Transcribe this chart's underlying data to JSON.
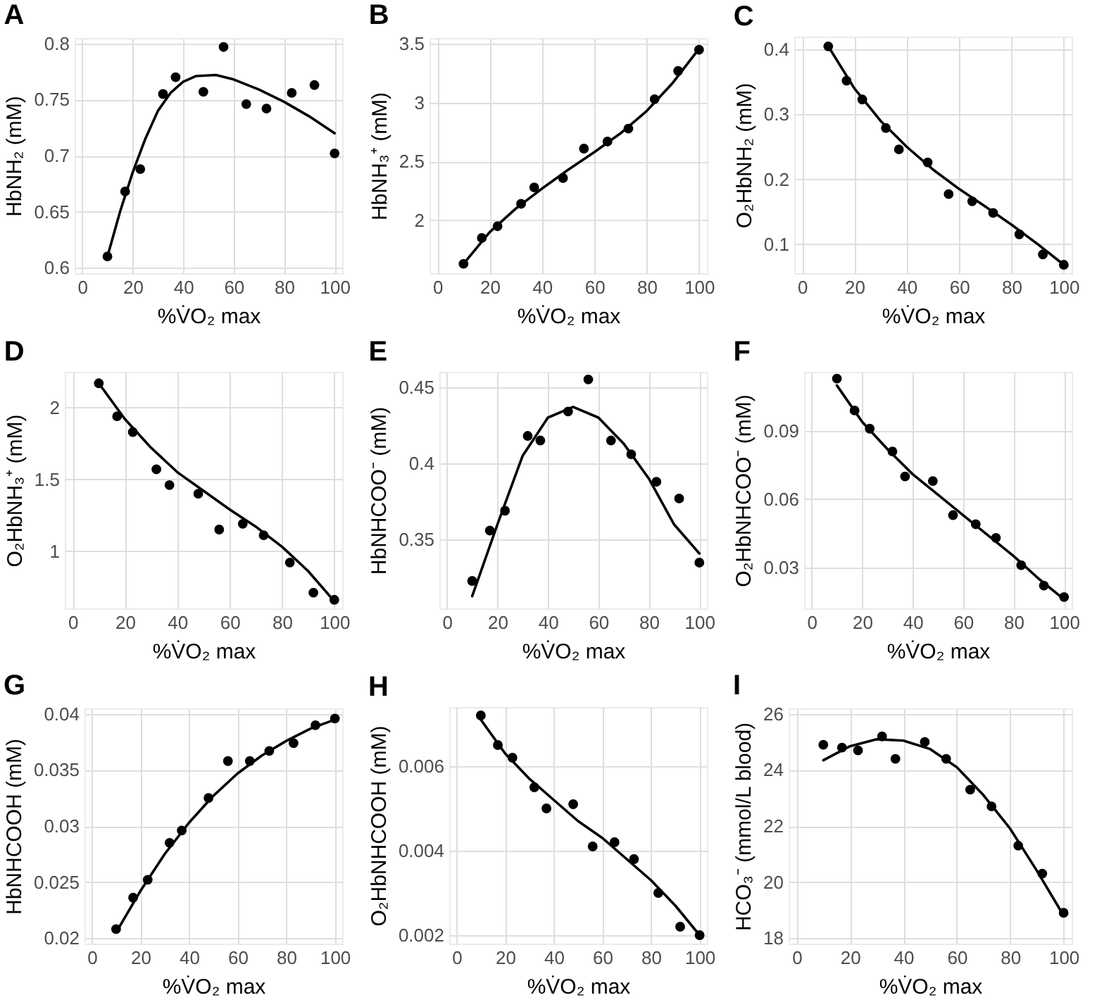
{
  "chart_data": [
    {
      "type": "scatter",
      "title": "A",
      "xlabel": "%V̇O₂ max",
      "ylabel": "HbNH₂ (mM)",
      "x": [
        10,
        17,
        23,
        32,
        37,
        48,
        56,
        65,
        73,
        83,
        92,
        100
      ],
      "xlim": [
        -3,
        103
      ],
      "xticks": [
        0,
        20,
        40,
        60,
        80,
        100
      ],
      "ylim": [
        0.595,
        0.805
      ],
      "yticks": [
        0.6,
        0.65,
        0.7,
        0.75,
        0.8
      ],
      "grid": true,
      "series": [
        {
          "marker": "circle",
          "color": "#000000",
          "values": [
            0.61,
            0.668,
            0.688,
            0.755,
            0.77,
            0.757,
            0.797,
            0.746,
            0.742,
            0.756,
            0.763,
            0.702
          ]
        },
        {
          "type": "line",
          "color": "#000000",
          "x": [
            10,
            15,
            20,
            25,
            30,
            35,
            40,
            45,
            53,
            60,
            70,
            80,
            90,
            100
          ],
          "values": [
            0.61,
            0.65,
            0.685,
            0.715,
            0.74,
            0.756,
            0.766,
            0.771,
            0.772,
            0.768,
            0.759,
            0.748,
            0.735,
            0.72
          ]
        }
      ]
    },
    {
      "type": "scatter",
      "title": "B",
      "xlabel": "%V̇O₂ max",
      "ylabel": "HbNH₃⁺ (mM)",
      "x": [
        10,
        17,
        23,
        32,
        37,
        48,
        56,
        65,
        73,
        83,
        92,
        100
      ],
      "xlim": [
        -3,
        103
      ],
      "xticks": [
        0,
        20,
        40,
        60,
        80,
        100
      ],
      "ylim": [
        1.55,
        3.55
      ],
      "yticks": [
        2,
        2.5,
        3,
        3.5
      ],
      "grid": true,
      "series": [
        {
          "marker": "circle",
          "color": "#000000",
          "values": [
            1.63,
            1.85,
            1.95,
            2.14,
            2.28,
            2.36,
            2.61,
            2.67,
            2.78,
            3.03,
            3.27,
            3.45
          ]
        },
        {
          "type": "line",
          "color": "#000000",
          "x": [
            10,
            20,
            30,
            40,
            50,
            60,
            70,
            80,
            90,
            100
          ],
          "values": [
            1.63,
            1.9,
            2.1,
            2.27,
            2.43,
            2.58,
            2.74,
            2.93,
            3.17,
            3.46
          ]
        }
      ]
    },
    {
      "type": "scatter",
      "title": "C",
      "xlabel": "%V̇O₂ max",
      "ylabel": "O₂HbNH₂ (mM)",
      "x": [
        10,
        17,
        23,
        32,
        37,
        48,
        56,
        65,
        73,
        83,
        92,
        100
      ],
      "xlim": [
        -3,
        103
      ],
      "xticks": [
        0,
        20,
        40,
        60,
        80,
        100
      ],
      "ylim": [
        0.055,
        0.42
      ],
      "yticks": [
        0.1,
        0.2,
        0.3,
        0.4
      ],
      "grid": true,
      "series": [
        {
          "marker": "circle",
          "color": "#000000",
          "values": [
            0.405,
            0.352,
            0.323,
            0.279,
            0.246,
            0.226,
            0.177,
            0.166,
            0.148,
            0.115,
            0.084,
            0.068
          ]
        },
        {
          "type": "line",
          "color": "#000000",
          "x": [
            10,
            20,
            30,
            40,
            50,
            60,
            70,
            80,
            90,
            100
          ],
          "values": [
            0.405,
            0.34,
            0.29,
            0.25,
            0.215,
            0.185,
            0.158,
            0.13,
            0.1,
            0.068
          ]
        }
      ]
    },
    {
      "type": "scatter",
      "title": "D",
      "xlabel": "%V̇O₂ max",
      "ylabel": "O₂HbNH₃⁺ (mM)",
      "x": [
        10,
        17,
        23,
        32,
        37,
        48,
        56,
        65,
        73,
        83,
        92,
        100
      ],
      "xlim": [
        -3,
        103
      ],
      "xticks": [
        0,
        20,
        40,
        60,
        80,
        100
      ],
      "ylim": [
        0.6,
        2.25
      ],
      "yticks": [
        1,
        1.5,
        2
      ],
      "grid": true,
      "series": [
        {
          "marker": "circle",
          "color": "#000000",
          "values": [
            2.17,
            1.94,
            1.83,
            1.57,
            1.46,
            1.4,
            1.15,
            1.19,
            1.11,
            0.92,
            0.71,
            0.66
          ]
        },
        {
          "type": "line",
          "color": "#000000",
          "x": [
            10,
            20,
            30,
            40,
            50,
            60,
            70,
            80,
            90,
            100
          ],
          "values": [
            2.17,
            1.92,
            1.72,
            1.55,
            1.42,
            1.29,
            1.17,
            1.03,
            0.86,
            0.65
          ]
        }
      ]
    },
    {
      "type": "scatter",
      "title": "E",
      "xlabel": "%V̇O₂ max",
      "ylabel": "HbNHCOO⁻ (mM)",
      "x": [
        10,
        17,
        23,
        32,
        37,
        48,
        56,
        65,
        73,
        83,
        92,
        100
      ],
      "xlim": [
        -3,
        103
      ],
      "xticks": [
        0,
        20,
        40,
        60,
        80,
        100
      ],
      "ylim": [
        0.305,
        0.46
      ],
      "yticks": [
        0.35,
        0.4,
        0.45
      ],
      "grid": true,
      "series": [
        {
          "marker": "circle",
          "color": "#000000",
          "values": [
            0.323,
            0.356,
            0.369,
            0.418,
            0.415,
            0.434,
            0.455,
            0.415,
            0.406,
            0.388,
            0.377,
            0.335
          ]
        },
        {
          "type": "line",
          "color": "#000000",
          "x": [
            10,
            20,
            30,
            40,
            50,
            60,
            70,
            80,
            90,
            100
          ],
          "values": [
            0.313,
            0.36,
            0.405,
            0.43,
            0.437,
            0.43,
            0.413,
            0.39,
            0.36,
            0.341
          ]
        }
      ]
    },
    {
      "type": "scatter",
      "title": "F",
      "xlabel": "%V̇O₂ max",
      "ylabel": "O₂HbNHCOO⁻ (mM)",
      "x": [
        10,
        17,
        23,
        32,
        37,
        48,
        56,
        65,
        73,
        83,
        92,
        100
      ],
      "xlim": [
        -3,
        103
      ],
      "xticks": [
        0,
        20,
        40,
        60,
        80,
        100
      ],
      "ylim": [
        0.012,
        0.116
      ],
      "yticks": [
        0.03,
        0.06,
        0.09
      ],
      "grid": true,
      "series": [
        {
          "marker": "circle",
          "color": "#000000",
          "values": [
            0.113,
            0.099,
            0.091,
            0.081,
            0.07,
            0.068,
            0.053,
            0.049,
            0.043,
            0.031,
            0.022,
            0.017
          ]
        },
        {
          "type": "line",
          "color": "#000000",
          "x": [
            10,
            20,
            30,
            40,
            50,
            60,
            70,
            80,
            90,
            100
          ],
          "values": [
            0.11,
            0.094,
            0.082,
            0.071,
            0.062,
            0.053,
            0.044,
            0.035,
            0.025,
            0.016
          ]
        }
      ]
    },
    {
      "type": "scatter",
      "title": "G",
      "xlabel": "%V̇O₂ max",
      "ylabel": "HbNHCOOH (mM)",
      "x": [
        10,
        17,
        23,
        32,
        37,
        48,
        56,
        65,
        73,
        83,
        92,
        100
      ],
      "xlim": [
        -3,
        103
      ],
      "xticks": [
        0,
        20,
        40,
        60,
        80,
        100
      ],
      "ylim": [
        0.0195,
        0.0405
      ],
      "yticks": [
        0.02,
        0.025,
        0.03,
        0.035,
        0.04
      ],
      "grid": true,
      "series": [
        {
          "marker": "circle",
          "color": "#000000",
          "values": [
            0.0208,
            0.0236,
            0.0252,
            0.0285,
            0.0296,
            0.0325,
            0.0358,
            0.0358,
            0.0367,
            0.0374,
            0.039,
            0.0396
          ]
        },
        {
          "type": "line",
          "color": "#000000",
          "x": [
            10,
            20,
            30,
            40,
            50,
            60,
            70,
            80,
            90,
            100
          ],
          "values": [
            0.0205,
            0.0242,
            0.0275,
            0.0303,
            0.0327,
            0.0347,
            0.0363,
            0.0376,
            0.0387,
            0.0395
          ]
        }
      ]
    },
    {
      "type": "scatter",
      "title": "H",
      "xlabel": "%V̇O₂ max",
      "ylabel": "O₂HbNHCOOH (mM)",
      "x": [
        10,
        17,
        23,
        32,
        37,
        48,
        56,
        65,
        73,
        83,
        92,
        100
      ],
      "xlim": [
        -3,
        103
      ],
      "xticks": [
        0,
        20,
        40,
        60,
        80,
        100
      ],
      "ylim": [
        0.0018,
        0.0074
      ],
      "yticks": [
        0.002,
        0.004,
        0.006
      ],
      "grid": true,
      "series": [
        {
          "marker": "circle",
          "color": "#000000",
          "values": [
            0.0072,
            0.0065,
            0.0062,
            0.0055,
            0.005,
            0.0051,
            0.0041,
            0.0042,
            0.0038,
            0.003,
            0.0022,
            0.002
          ]
        },
        {
          "type": "line",
          "color": "#000000",
          "x": [
            10,
            20,
            30,
            40,
            50,
            60,
            70,
            80,
            90,
            100
          ],
          "values": [
            0.0071,
            0.0063,
            0.0057,
            0.0052,
            0.0047,
            0.0043,
            0.0038,
            0.0033,
            0.0027,
            0.002
          ]
        }
      ]
    },
    {
      "type": "scatter",
      "title": "I",
      "xlabel": "%V̇O₂ max",
      "ylabel": "HCO₃⁻ (mmol/L blood)",
      "x": [
        10,
        17,
        23,
        32,
        37,
        48,
        56,
        65,
        73,
        83,
        92,
        100
      ],
      "xlim": [
        -3,
        103
      ],
      "xticks": [
        0,
        20,
        40,
        60,
        80,
        100
      ],
      "ylim": [
        17.8,
        26.2
      ],
      "yticks": [
        18,
        20,
        22,
        24,
        26
      ],
      "grid": true,
      "series": [
        {
          "marker": "circle",
          "color": "#000000",
          "values": [
            24.9,
            24.8,
            24.7,
            25.2,
            24.4,
            25,
            24.4,
            23.3,
            22.7,
            21.3,
            20.3,
            18.9
          ]
        },
        {
          "type": "line",
          "color": "#000000",
          "x": [
            10,
            20,
            30,
            40,
            50,
            60,
            70,
            80,
            90,
            100
          ],
          "values": [
            24.35,
            24.85,
            25.1,
            25.05,
            24.75,
            24.1,
            23.1,
            21.9,
            20.4,
            18.8
          ]
        }
      ]
    }
  ]
}
